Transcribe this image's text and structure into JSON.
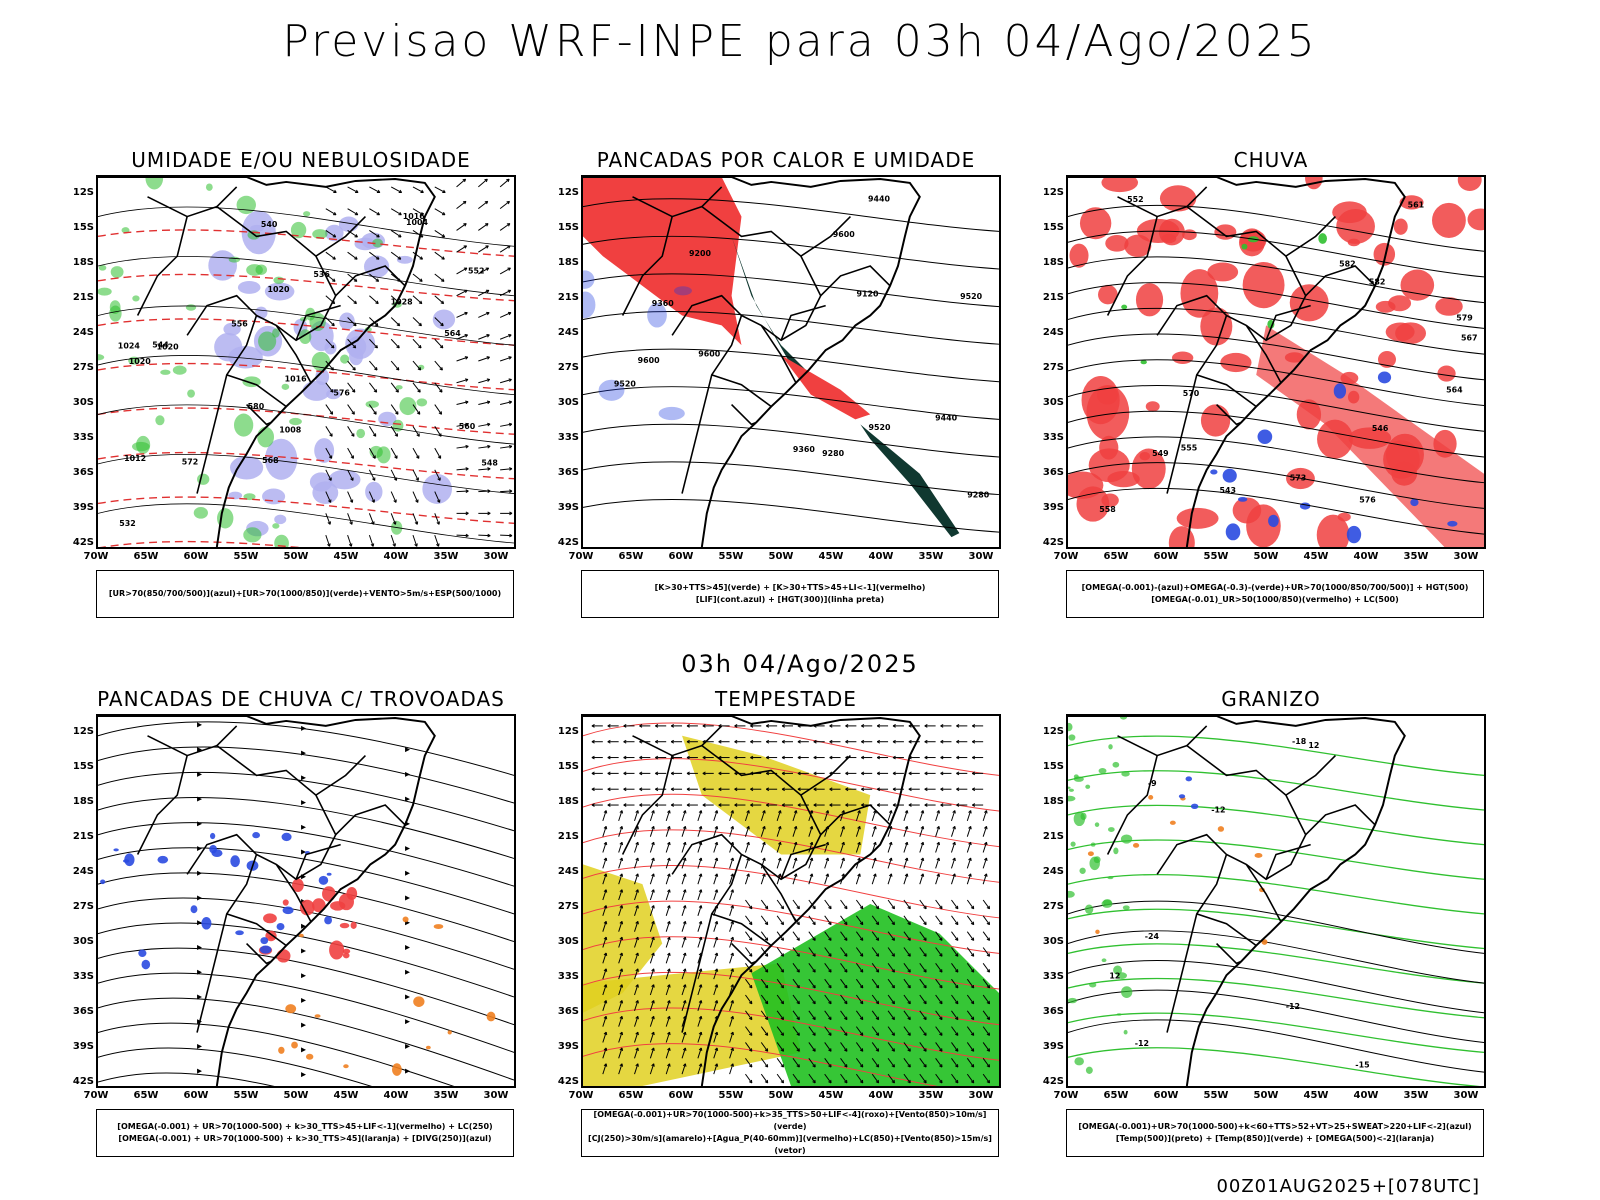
{
  "title": "Previsao WRF-INPE  para 03h 04/Ago/2025",
  "subtitle": "03h 04/Ago/2025",
  "footer": "00Z01AUG2025+[078UTC]",
  "axes": {
    "y_ticks": [
      "12S",
      "15S",
      "18S",
      "21S",
      "24S",
      "27S",
      "30S",
      "33S",
      "36S",
      "39S",
      "42S"
    ],
    "x_ticks": [
      "70W",
      "65W",
      "60W",
      "55W",
      "50W",
      "45W",
      "40W",
      "35W",
      "30W"
    ]
  },
  "panels": [
    {
      "title": "UMIDADE E/OU NEBULOSIDADE",
      "legend": [
        "[UR>70(850/700/500)](azul)+[UR>70(1000/850)](verde)+VENTO>5m/s+ESP(500/1000)"
      ],
      "contour_labels": [
        "1020",
        "1016",
        "1020",
        "1024",
        "1028",
        "1020",
        "1016",
        "1012",
        "1008",
        "1004",
        "548",
        "552",
        "556",
        "560",
        "564",
        "568",
        "572",
        "576",
        "580",
        "544",
        "540",
        "536",
        "532"
      ]
    },
    {
      "title": "PANCADAS POR CALOR E UMIDADE",
      "legend": [
        "[K>30+TTS>45](verde)  +  [K>30+TTS>45+LI<-1](vermelho)",
        "[LIF](cont.azul)  +  [HGT(300)](linha preta)"
      ],
      "contour_labels": [
        "9600",
        "9600",
        "9600",
        "9520",
        "9520",
        "9520",
        "9440",
        "9440",
        "9360",
        "9360",
        "9280",
        "9280",
        "9200",
        "9120"
      ]
    },
    {
      "title": "CHUVA",
      "legend": [
        "[OMEGA(-0.001)-(azul)+OMEGA(-0.3)-(verde)+UR>70(1000/850/700/500)]  +  HGT(500)",
        "[OMEGA(-0.01)_UR>50(1000/850)(vermelho)  +  LC(500)"
      ],
      "contour_labels": [
        "582",
        "579",
        "576",
        "573",
        "570",
        "567",
        "564",
        "561",
        "558",
        "555",
        "552",
        "549",
        "546",
        "543",
        "582"
      ]
    },
    {
      "title": "PANCADAS DE CHUVA C/ TROVOADAS",
      "legend": [
        "[OMEGA(-0.001)  +  UR>70(1000-500)  +  k>30_TTS>45+LIF<-1](vermelho)  +  LC(250)",
        "[OMEGA(-0.001)  +  UR>70(1000-500)  +  k>30_TTS>45](laranja)  +  [DIVG(250)](azul)"
      ],
      "contour_labels": []
    },
    {
      "title": "TEMPESTADE",
      "legend": [
        "[OMEGA(-0.001)+UR>70(1000-500)+k>35_TTS>50+LIF<-4](roxo)+[Vento(850)>10m/s](verde)",
        "[CJ(250)>30m/s](amarelo)+[Agua_P(40-60mm)](vermelho)+LC(850)+[Vento(850)>15m/s](vetor)"
      ],
      "contour_labels": []
    },
    {
      "title": "GRANIZO",
      "legend": [
        "[OMEGA(-0.001)+UR>70(1000-500)+k<60+TTS>52+VT>25+SWEAT>220+LIF<-2](azul)",
        "[Temp(500)](preto)  +  [Temp(850)](verde)  +  [OMEGA(500)<-2](laranja)"
      ],
      "contour_labels": [
        "-9",
        "-12",
        "-12",
        "-15",
        "-18",
        "-24",
        "12",
        "-12",
        "12"
      ]
    }
  ]
}
